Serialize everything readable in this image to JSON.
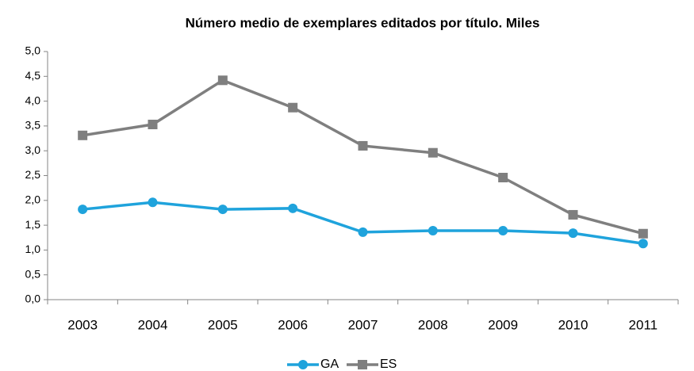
{
  "chart_data": {
    "type": "line",
    "title": "Número medio de exemplares editados por título. Miles",
    "categories": [
      "2003",
      "2004",
      "2005",
      "2006",
      "2007",
      "2008",
      "2009",
      "2010",
      "2011"
    ],
    "series": [
      {
        "name": "GA",
        "color": "#1fa3dc",
        "marker": "circle",
        "values": [
          1.82,
          1.96,
          1.82,
          1.84,
          1.36,
          1.39,
          1.39,
          1.34,
          1.13
        ]
      },
      {
        "name": "ES",
        "color": "#7f7f7f",
        "marker": "square",
        "values": [
          3.31,
          3.53,
          4.42,
          3.87,
          3.1,
          2.96,
          2.46,
          1.71,
          1.33
        ]
      }
    ],
    "ylim": [
      0,
      5
    ],
    "yticks": [
      {
        "value": 0,
        "label": "0,0"
      },
      {
        "value": 0.5,
        "label": "0,5"
      },
      {
        "value": 1,
        "label": "1,0"
      },
      {
        "value": 1.5,
        "label": "1,5"
      },
      {
        "value": 2,
        "label": "2,0"
      },
      {
        "value": 2.5,
        "label": "2,5"
      },
      {
        "value": 3,
        "label": "3,0"
      },
      {
        "value": 3.5,
        "label": "3,5"
      },
      {
        "value": 4,
        "label": "4,0"
      },
      {
        "value": 4.5,
        "label": "4,5"
      },
      {
        "value": 5,
        "label": "5,0"
      }
    ],
    "legend": "bottom",
    "grid": false
  }
}
